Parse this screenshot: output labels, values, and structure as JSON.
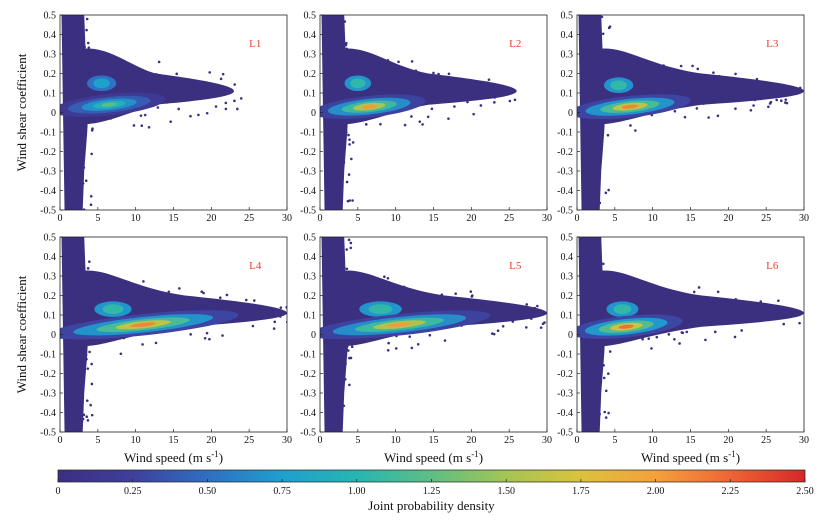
{
  "chart_data": {
    "type": "heatmap",
    "title": "",
    "xlabel": "Wind speed",
    "xlabel_unit": "(m s",
    "xlabel_exp": "-1",
    "xlabel_close": ")",
    "ylabel": "Wind shear coefficient",
    "xlim": [
      0,
      30
    ],
    "ylim": [
      -0.5,
      0.5
    ],
    "x_ticks": [
      "0",
      "5",
      "10",
      "15",
      "20",
      "25",
      "30"
    ],
    "y_ticks": [
      "0.5",
      "0.4",
      "0.3",
      "0.2",
      "0.1",
      "0",
      "-0.1",
      "-0.2",
      "-0.3",
      "-0.4",
      "-0.5"
    ],
    "panels": [
      {
        "name": "L1",
        "max_ws": 23,
        "peak_ws": 6.5,
        "peak_shear": 0.04,
        "peak_density": 1.35,
        "secondary_shear": 0.15,
        "secondary_ws": 5.5
      },
      {
        "name": "L2",
        "max_ws": 26,
        "peak_ws": 6.5,
        "peak_shear": 0.03,
        "peak_density": 2.2,
        "secondary_shear": 0.15,
        "secondary_ws": 5.0
      },
      {
        "name": "L3",
        "max_ws": 30,
        "peak_ws": 7.0,
        "peak_shear": 0.03,
        "peak_density": 2.3,
        "secondary_shear": 0.14,
        "secondary_ws": 5.5
      },
      {
        "name": "L4",
        "max_ws": 30,
        "peak_ws": 11.0,
        "peak_shear": 0.05,
        "peak_density": 2.3,
        "secondary_shear": 0.13,
        "secondary_ws": 7.0
      },
      {
        "name": "L5",
        "max_ws": 30,
        "peak_ws": 10.5,
        "peak_shear": 0.05,
        "peak_density": 2.2,
        "secondary_shear": 0.13,
        "secondary_ws": 8.0
      },
      {
        "name": "L6",
        "max_ws": 30,
        "peak_ws": 6.5,
        "peak_shear": 0.04,
        "peak_density": 2.4,
        "secondary_shear": 0.13,
        "secondary_ws": 6.0
      }
    ],
    "colorbar": {
      "label": "Joint probability density",
      "range": [
        0,
        2.5
      ],
      "ticks": [
        "0",
        "0.25",
        "0.50",
        "0.75",
        "1.00",
        "1.25",
        "1.50",
        "1.75",
        "2.00",
        "2.25",
        "2.50"
      ],
      "colors": [
        "#3b2f80",
        "#3f3f9d",
        "#2f6fc2",
        "#1f9fcf",
        "#27b6b2",
        "#5fbe84",
        "#a4c554",
        "#dcc23c",
        "#f4a03c",
        "#ee6535",
        "#d62828"
      ]
    }
  }
}
